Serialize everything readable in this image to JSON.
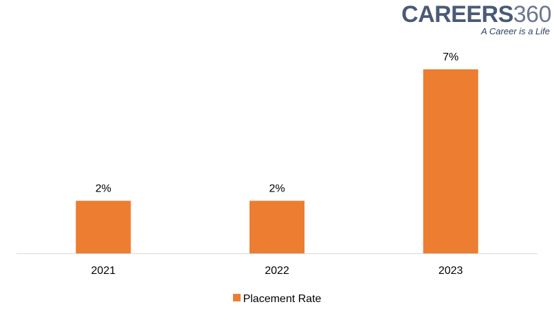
{
  "logo": {
    "brand": "CAREERS",
    "brand_number": "360",
    "tagline": "A Career is a Life"
  },
  "chart_data": {
    "type": "bar",
    "categories": [
      "2021",
      "2022",
      "2023"
    ],
    "series": [
      {
        "name": "Placement Rate",
        "values": [
          2,
          2,
          7
        ],
        "labels": [
          "2%",
          "2%",
          "7%"
        ],
        "color": "#ED7D31"
      }
    ],
    "ylim": [
      0,
      7
    ],
    "grid": false,
    "legend_position": "bottom"
  }
}
